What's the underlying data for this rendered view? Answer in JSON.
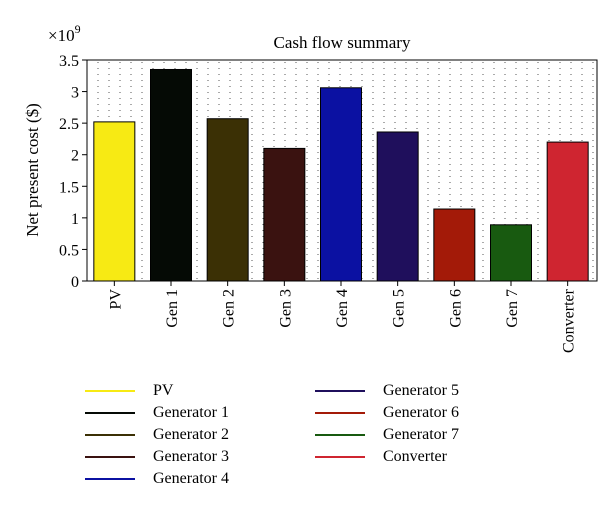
{
  "chart_data": {
    "type": "bar",
    "title": "Cash flow summary",
    "ylabel": "Net present cost ($)",
    "xlabel": "",
    "y_multiplier": "×10",
    "y_multiplier_exponent": "9",
    "ylim": [
      0,
      3.5
    ],
    "yticks": [
      "0",
      "0.5",
      "1",
      "1.5",
      "2",
      "2.5",
      "3",
      "3.5"
    ],
    "grid": "dotted vertical",
    "categories": [
      "PV",
      "Gen 1",
      "Gen 2",
      "Gen 3",
      "Gen 4",
      "Gen 5",
      "Gen 6",
      "Gen 7",
      "Converter"
    ],
    "values": [
      2.52,
      3.35,
      2.57,
      2.1,
      3.06,
      2.36,
      1.14,
      0.89,
      2.2
    ],
    "colors": [
      "#f7ea14",
      "#050a05",
      "#3b3005",
      "#3a1210",
      "#0b11a2",
      "#1f0f5c",
      "#a31a08",
      "#185a10",
      "#cf2530"
    ],
    "legend": [
      {
        "label": "PV",
        "color": "#f7ea14"
      },
      {
        "label": "Generator 1",
        "color": "#050a05"
      },
      {
        "label": "Generator 2",
        "color": "#3b3005"
      },
      {
        "label": "Generator 3",
        "color": "#3a1210"
      },
      {
        "label": "Generator 4",
        "color": "#0b11a2"
      },
      {
        "label": "Generator 5",
        "color": "#1f0f5c"
      },
      {
        "label": "Generator 6",
        "color": "#a31a08"
      },
      {
        "label": "Generator 7",
        "color": "#185a10"
      },
      {
        "label": "Converter",
        "color": "#cf2530"
      }
    ]
  }
}
